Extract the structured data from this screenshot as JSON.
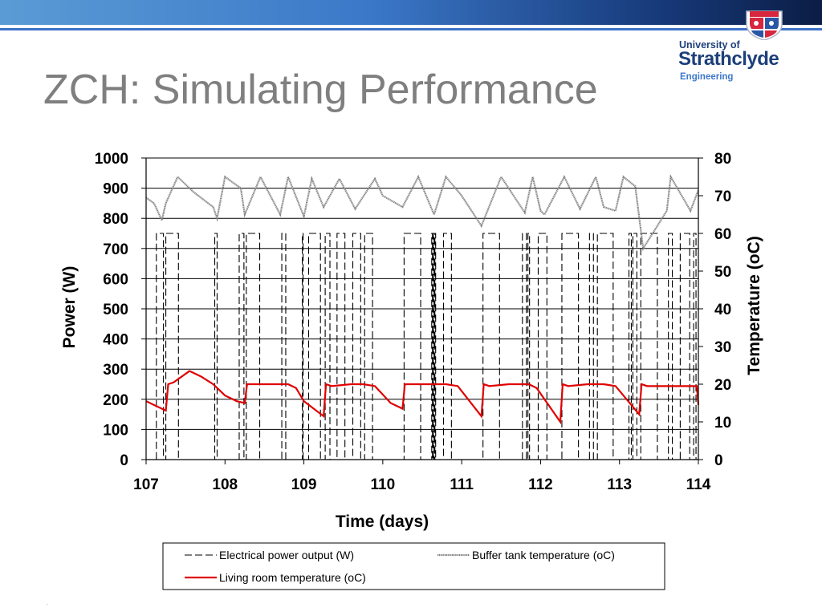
{
  "slide": {
    "title": "ZCH: Simulating Performance",
    "footer_mark": "."
  },
  "logo": {
    "line1": "University of",
    "line2": "Strathclyde",
    "line3": "Engineering"
  },
  "colors": {
    "header_gradient_start": "#5b9bd5",
    "header_gradient_end": "#0b1d45",
    "title": "#7f7f7f",
    "logo_text": "#1d3f7a",
    "electrical": "#000000",
    "buffer": "#808080",
    "living": "#e00000"
  },
  "chart_data": {
    "type": "line",
    "xlabel": "Time (days)",
    "ylabel_left": "Power (W)",
    "ylabel_right": "Temperature (oC)",
    "xlim": [
      107,
      114
    ],
    "ylim_left": [
      0,
      1000
    ],
    "ylim_right": [
      0,
      80
    ],
    "xticks": [
      "107",
      "108",
      "109",
      "110",
      "111",
      "112",
      "113",
      "114"
    ],
    "yticks_left": [
      "0",
      "100",
      "200",
      "300",
      "400",
      "500",
      "600",
      "700",
      "800",
      "900",
      "1000"
    ],
    "yticks_right": [
      "0",
      "10",
      "20",
      "30",
      "40",
      "50",
      "60",
      "70",
      "80"
    ],
    "grid": "horizontal",
    "legend_position": "bottom",
    "series": [
      {
        "name": "Electrical power output (W)",
        "axis": "left",
        "style": "dashed-black",
        "on_off_levels": [
          0,
          750
        ],
        "on_intervals": [
          [
            107.13,
            107.22
          ],
          [
            107.25,
            107.41
          ],
          [
            107.87,
            107.9
          ],
          [
            108.18,
            108.24
          ],
          [
            108.27,
            108.44
          ],
          [
            108.72,
            108.77
          ],
          [
            108.98,
            108.99
          ],
          [
            109.06,
            109.21
          ],
          [
            109.27,
            109.33
          ],
          [
            109.42,
            109.52
          ],
          [
            109.62,
            109.72
          ],
          [
            109.77,
            109.87
          ],
          [
            110.27,
            110.48
          ],
          [
            110.62,
            110.63
          ],
          [
            110.64,
            110.65
          ],
          [
            110.66,
            110.67
          ],
          [
            110.77,
            110.87
          ],
          [
            111.27,
            111.48
          ],
          [
            111.77,
            111.82
          ],
          [
            111.84,
            111.86
          ],
          [
            111.97,
            112.08
          ],
          [
            112.27,
            112.48
          ],
          [
            112.62,
            112.67
          ],
          [
            112.72,
            112.92
          ],
          [
            113.12,
            113.15
          ],
          [
            113.17,
            113.22
          ],
          [
            113.27,
            113.48
          ],
          [
            113.62,
            113.67
          ],
          [
            113.77,
            113.89
          ],
          [
            113.94,
            113.97
          ]
        ]
      },
      {
        "name": "Buffer tank temperature (oC)",
        "axis": "right",
        "style": "gray-solid",
        "x": [
          107.0,
          107.1,
          107.2,
          107.25,
          107.4,
          107.6,
          107.85,
          107.9,
          108.0,
          108.2,
          108.25,
          108.45,
          108.7,
          108.8,
          109.0,
          109.1,
          109.25,
          109.45,
          109.65,
          109.9,
          110.0,
          110.25,
          110.45,
          110.65,
          110.8,
          111.0,
          111.25,
          111.5,
          111.8,
          111.9,
          112.0,
          112.05,
          112.3,
          112.5,
          112.7,
          112.8,
          112.95,
          113.05,
          113.2,
          113.3,
          113.6,
          113.65,
          113.9,
          114.0
        ],
        "values": [
          69.5,
          68,
          63.5,
          68,
          75,
          71,
          67,
          64,
          75,
          72,
          65,
          75,
          65,
          75,
          64.5,
          74.5,
          67,
          74.5,
          66.5,
          74.5,
          70,
          67,
          75,
          65,
          75,
          70,
          62,
          75,
          65.5,
          75,
          66,
          65,
          75,
          66.5,
          75,
          67,
          66,
          75,
          72.5,
          56,
          66,
          75,
          66,
          71.5
        ]
      },
      {
        "name": "Living room temperature (oC)",
        "axis": "right",
        "style": "red-solid",
        "x": [
          107.0,
          107.1,
          107.25,
          107.28,
          107.35,
          107.55,
          107.7,
          107.85,
          108.0,
          108.15,
          108.25,
          108.28,
          108.35,
          108.6,
          108.8,
          108.9,
          109.0,
          109.25,
          109.28,
          109.35,
          109.6,
          109.75,
          109.9,
          110.1,
          110.25,
          110.28,
          110.35,
          110.6,
          110.8,
          110.95,
          111.25,
          111.28,
          111.35,
          111.6,
          111.85,
          111.95,
          112.25,
          112.28,
          112.35,
          112.6,
          112.8,
          112.95,
          113.25,
          113.28,
          113.35,
          113.6,
          113.8,
          113.98,
          114.0
        ],
        "values": [
          15.5,
          14.5,
          13,
          20,
          20.5,
          23.5,
          22,
          20,
          17,
          15.5,
          15,
          20,
          20,
          20,
          20,
          19,
          15.5,
          11.5,
          20,
          19.5,
          20,
          20,
          19.5,
          15,
          13.5,
          20,
          20,
          20,
          20,
          19.5,
          11.5,
          20,
          19.5,
          20,
          20,
          19,
          10,
          20,
          19.5,
          20,
          20,
          19.5,
          12,
          20,
          19.5,
          19.5,
          19.5,
          19.5,
          14.5
        ]
      }
    ]
  }
}
